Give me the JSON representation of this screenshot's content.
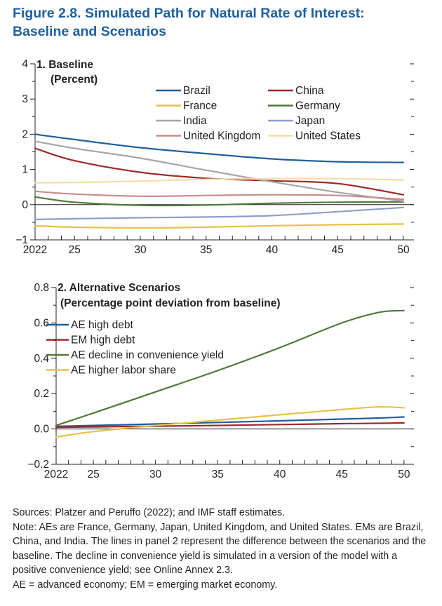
{
  "figure": {
    "title_line1": "Figure 2.8.  Simulated Path for Natural Rate of Interest:",
    "title_line2": "Baseline and Scenarios"
  },
  "chart_data": [
    {
      "type": "line",
      "title": "1. Baseline",
      "subtitle": "(Percent)",
      "xlabel": "",
      "ylabel": "",
      "x": [
        2022,
        2025,
        2030,
        2035,
        2040,
        2045,
        2050
      ],
      "xticks": [
        "2022",
        "25",
        "30",
        "35",
        "40",
        "45",
        "50"
      ],
      "yticks": [
        -1,
        0,
        1,
        2,
        3,
        4
      ],
      "ylim": [
        -1,
        4
      ],
      "xlim": [
        2022,
        2050.8
      ],
      "grid": false,
      "legend_position": "top-center",
      "series": [
        {
          "name": "Brazil",
          "color": "#1f5f9e",
          "values": [
            2.0,
            1.85,
            1.62,
            1.45,
            1.3,
            1.22,
            1.2
          ]
        },
        {
          "name": "China",
          "color": "#9e2a2b",
          "values": [
            1.6,
            1.25,
            0.92,
            0.75,
            0.68,
            0.6,
            0.28
          ]
        },
        {
          "name": "France",
          "color": "#e8c04b",
          "values": [
            -0.6,
            -0.64,
            -0.66,
            -0.64,
            -0.6,
            -0.57,
            -0.55
          ]
        },
        {
          "name": "Germany",
          "color": "#4f7a3a",
          "values": [
            0.22,
            0.07,
            -0.02,
            -0.01,
            0.04,
            0.07,
            0.08
          ]
        },
        {
          "name": "India",
          "color": "#a6a6a6",
          "values": [
            1.8,
            1.6,
            1.32,
            0.98,
            0.65,
            0.35,
            0.1
          ]
        },
        {
          "name": "Japan",
          "color": "#8c9fc8",
          "values": [
            -0.42,
            -0.4,
            -0.37,
            -0.35,
            -0.31,
            -0.2,
            -0.08
          ]
        },
        {
          "name": "United Kingdom",
          "color": "#c98d8a",
          "values": [
            0.38,
            0.3,
            0.24,
            0.26,
            0.28,
            0.26,
            0.15
          ]
        },
        {
          "name": "United States",
          "color": "#f2dea6",
          "values": [
            0.62,
            0.63,
            0.67,
            0.72,
            0.74,
            0.74,
            0.7
          ]
        }
      ]
    },
    {
      "type": "line",
      "title": "2. Alternative Scenarios",
      "subtitle": "(Percentage point deviation from baseline)",
      "xlabel": "",
      "ylabel": "",
      "x": [
        2022,
        2025,
        2030,
        2035,
        2040,
        2045,
        2048,
        2050
      ],
      "xticks": [
        "2022",
        "25",
        "30",
        "35",
        "40",
        "45",
        "50"
      ],
      "yticks": [
        "−0.2",
        "0.0",
        "0.2",
        "0.4",
        "0.6",
        "0.8"
      ],
      "ylim": [
        -0.2,
        0.8
      ],
      "xlim": [
        2022,
        2050.8
      ],
      "grid": false,
      "legend_position": "top-left",
      "series": [
        {
          "name": "AE high debt",
          "color": "#1f5f9e",
          "values": [
            0.015,
            0.02,
            0.028,
            0.037,
            0.046,
            0.056,
            0.062,
            0.068
          ]
        },
        {
          "name": "EM high debt",
          "color": "#9e2a2b",
          "values": [
            0.01,
            0.012,
            0.016,
            0.02,
            0.025,
            0.03,
            0.032,
            0.034
          ]
        },
        {
          "name": "AE decline in convenience yield",
          "color": "#4f7a3a",
          "values": [
            0.02,
            0.09,
            0.21,
            0.33,
            0.46,
            0.6,
            0.66,
            0.67
          ]
        },
        {
          "name": "AE higher labor share",
          "color": "#e8c04b",
          "values": [
            -0.045,
            -0.015,
            0.02,
            0.05,
            0.08,
            0.11,
            0.125,
            0.12
          ]
        }
      ]
    }
  ],
  "notes": {
    "sources": "Sources: Platzer and Peruffo (2022); and IMF staff estimates.",
    "note": "Note: AEs are France, Germany, Japan, United Kingdom, and United States. EMs are Brazil, China, and India. The lines in panel 2 represent the difference between the scenarios and the baseline. The decline in convenience yield is simulated in a version of the model with a positive convenience yield; see Online Annex 2.3.",
    "abbrev": "AE = advanced economy; EM = emerging market economy."
  }
}
